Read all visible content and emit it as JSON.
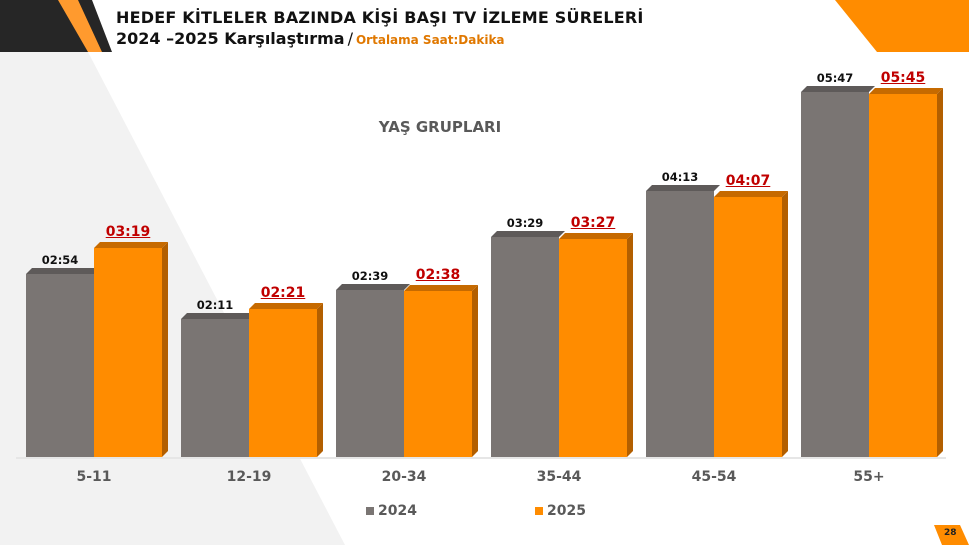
{
  "header": {
    "title_line1": "HEDEF KİTLELER BAZINDA KİŞİ BAŞI TV İZLEME SÜRELERİ",
    "title_line2": "2024 –2025 Karşılaştırma",
    "separator": "/",
    "subtitle": "Ortalama Saat:Dakika"
  },
  "colors": {
    "series_2024": "#7a7573",
    "series_2025": "#ff8c00",
    "label_2025": "#c00000",
    "accent": "#ff8c00",
    "dark": "#262626"
  },
  "page_number": "28",
  "chart_data": {
    "type": "bar",
    "title": "YAŞ GRUPLARI",
    "xlabel": "",
    "ylabel": "Ortalama Saat:Dakika",
    "categories": [
      "5-11",
      "12-19",
      "20-34",
      "35-44",
      "45-54",
      "55+"
    ],
    "series": [
      {
        "name": "2024",
        "values": [
          "02:54",
          "02:11",
          "02:39",
          "03:29",
          "04:13",
          "05:47"
        ],
        "minutes": [
          174,
          131,
          159,
          209,
          253,
          347
        ]
      },
      {
        "name": "2025",
        "values": [
          "03:19",
          "02:21",
          "02:38",
          "03:27",
          "04:07",
          "05:45"
        ],
        "minutes": [
          199,
          141,
          158,
          207,
          247,
          345
        ]
      }
    ],
    "legend": [
      "2024",
      "2025"
    ],
    "legend_position": "bottom",
    "grid": false,
    "bar_style": "3d-clustered",
    "ylim_minutes": [
      0,
      347
    ]
  }
}
